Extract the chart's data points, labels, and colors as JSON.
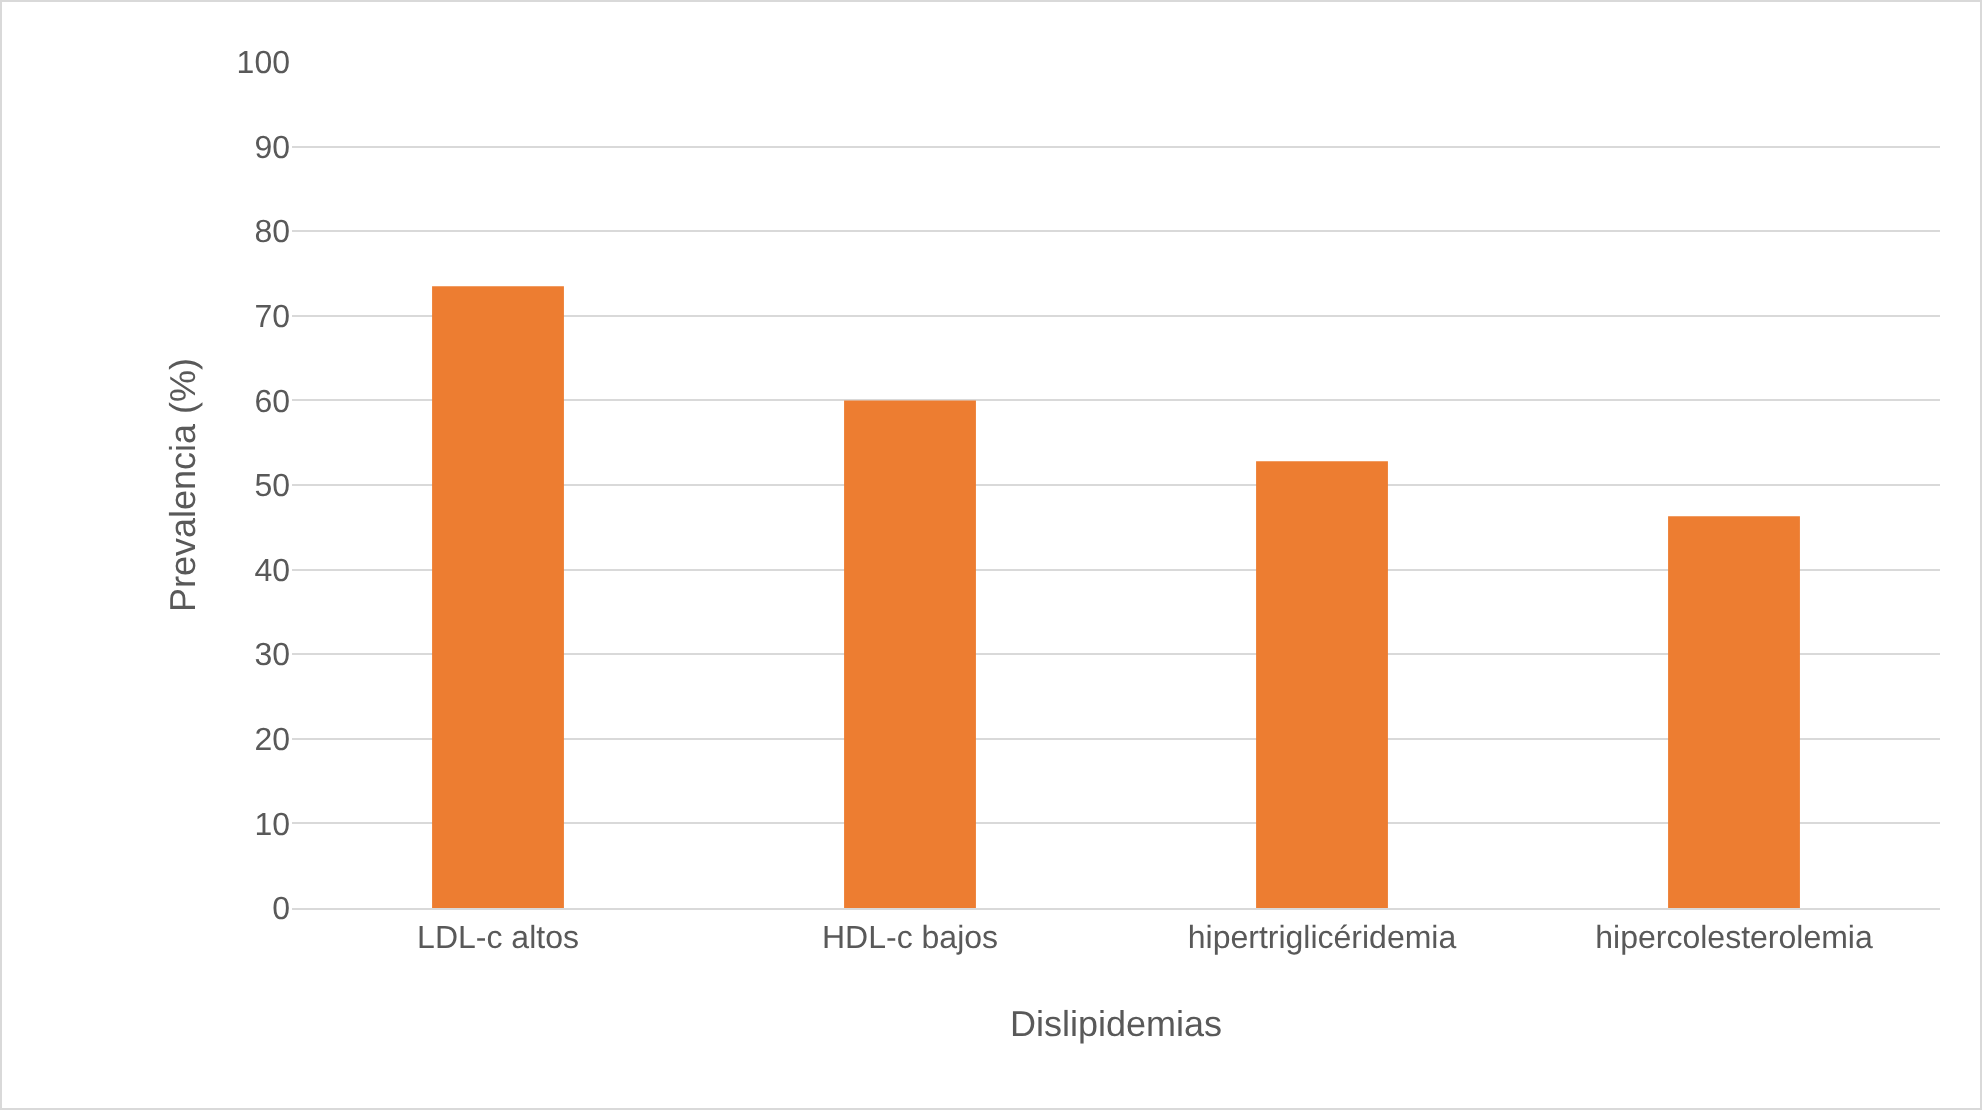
{
  "chart_data": {
    "type": "bar",
    "categories": [
      "LDL-c altos",
      "HDL-c bajos",
      "hipertriglicéridemia",
      "hipercolesterolemia"
    ],
    "values": [
      73.5,
      60,
      52.8,
      46.3
    ],
    "color": "#ed7d31",
    "xlabel": "Dislipidemias",
    "ylabel": "Prevalencia (%)",
    "ylim": [
      0,
      100
    ],
    "yticks": [
      0,
      10,
      20,
      30,
      40,
      50,
      60,
      70,
      80,
      90,
      100
    ],
    "grid": "y",
    "legend": false
  }
}
